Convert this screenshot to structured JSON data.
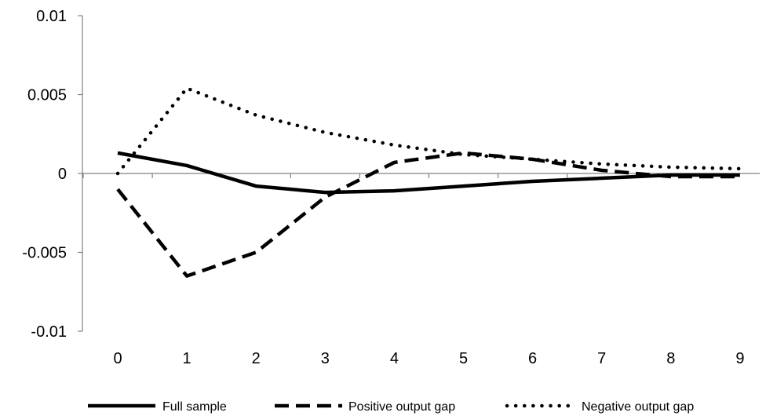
{
  "chart_data": {
    "type": "line",
    "title": "",
    "xlabel": "",
    "ylabel": "",
    "x": [
      0,
      1,
      2,
      3,
      4,
      5,
      6,
      7,
      8,
      9
    ],
    "xticks": [
      "0",
      "1",
      "2",
      "3",
      "4",
      "5",
      "6",
      "7",
      "8",
      "9"
    ],
    "ylim": [
      -0.01,
      0.01
    ],
    "yticks": [
      0.01,
      0.005,
      0,
      -0.005,
      -0.01
    ],
    "ytick_labels": [
      "0.01",
      "0.005",
      "0",
      "-0.005",
      "-0.01"
    ],
    "grid": false,
    "legend_position": "bottom",
    "series": [
      {
        "name": "Full sample",
        "style": "solid",
        "color": "#000000",
        "values": [
          0.0013,
          0.0005,
          -0.0008,
          -0.0012,
          -0.0011,
          -0.0008,
          -0.0005,
          -0.0003,
          -0.0001,
          -0.0001
        ]
      },
      {
        "name": "Positive output gap",
        "style": "dashed",
        "color": "#000000",
        "values": [
          -0.001,
          -0.0065,
          -0.005,
          -0.0015,
          0.0007,
          0.0013,
          0.0009,
          0.0002,
          -0.0002,
          -0.0002
        ]
      },
      {
        "name": "Negative output gap",
        "style": "dotted",
        "color": "#000000",
        "values": [
          0.0,
          0.0054,
          0.0037,
          0.0026,
          0.0018,
          0.0012,
          0.0009,
          0.0006,
          0.0004,
          0.0003
        ]
      }
    ]
  }
}
